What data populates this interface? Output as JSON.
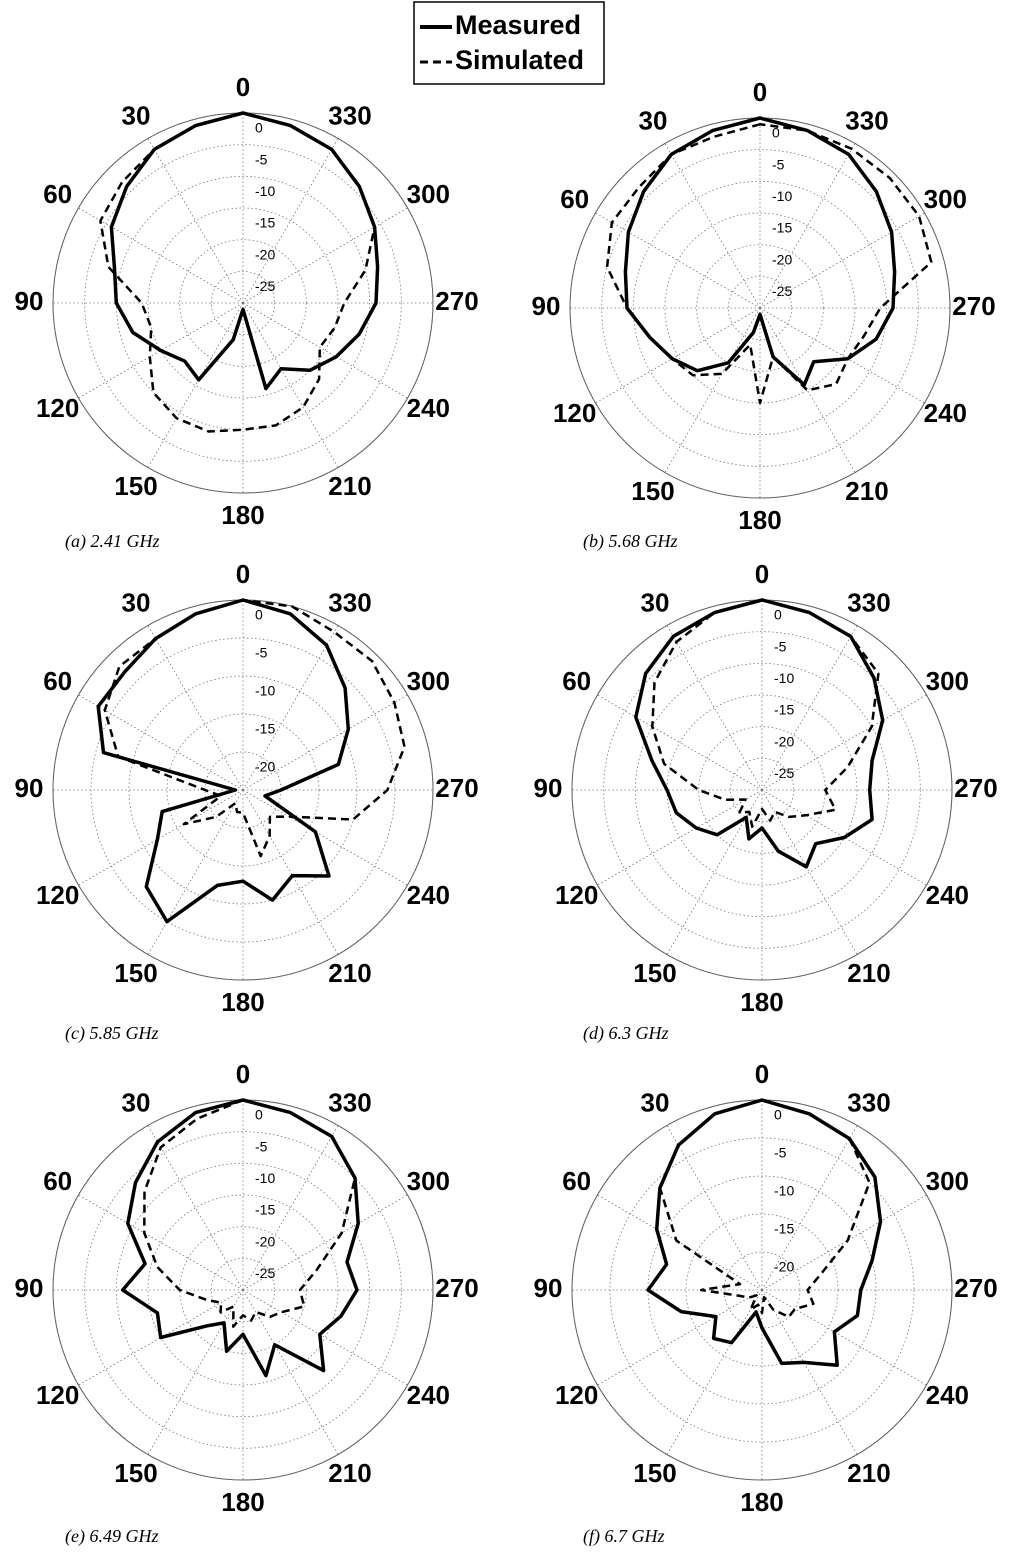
{
  "chart_data": [
    {
      "type": "polar",
      "title": "(a) 2.41 GHz",
      "theta": [
        0,
        15,
        30,
        45,
        60,
        75,
        90,
        105,
        120,
        135,
        150,
        165,
        180,
        195,
        210,
        225,
        240,
        255,
        270,
        285,
        300,
        315,
        330,
        345
      ],
      "rlim": [
        -30,
        0
      ],
      "rticks": [
        0,
        -5,
        -10,
        -15,
        -20,
        -25
      ],
      "thetaticks": [
        0,
        30,
        60,
        90,
        120,
        150,
        180,
        210,
        240,
        270,
        300,
        330
      ],
      "series": [
        {
          "name": "Measured",
          "color": "#000000",
          "dash": "solid",
          "values": [
            0,
            -1,
            -2,
            -4,
            -6,
            -9,
            -10,
            -12,
            -15,
            -17,
            -16,
            -24,
            -29,
            -16,
            -18,
            -15,
            -13,
            -11,
            -9,
            -8,
            -6,
            -4,
            -2,
            -1
          ]
        },
        {
          "name": "Simulated",
          "color": "#000000",
          "dash": "dashed",
          "values": [
            0,
            -1,
            -2,
            -3,
            -4,
            -8,
            -14,
            -15,
            -13,
            -10,
            -9,
            -9,
            -10,
            -10,
            -11,
            -13,
            -16,
            -15,
            -14,
            -10,
            -6,
            -4,
            -2,
            -1
          ]
        }
      ]
    },
    {
      "type": "polar",
      "title": "(b) 5.68 GHz",
      "theta": [
        0,
        15,
        30,
        45,
        60,
        75,
        90,
        105,
        120,
        135,
        150,
        165,
        180,
        195,
        210,
        225,
        240,
        255,
        270,
        285,
        300,
        315,
        330,
        345
      ],
      "rlim": [
        -30,
        0
      ],
      "rticks": [
        0,
        -5,
        -10,
        -15,
        -20,
        -25
      ],
      "thetaticks": [
        0,
        30,
        60,
        90,
        120,
        150,
        180,
        210,
        240,
        270,
        300,
        330
      ],
      "series": [
        {
          "color": "#000000",
          "dash": "solid",
          "values": [
            0,
            -1,
            -2,
            -4,
            -6,
            -8,
            -9,
            -12,
            -14,
            -16,
            -20,
            -26,
            -29,
            -22,
            -16,
            -18,
            -14,
            -11,
            -9,
            -8,
            -6,
            -4,
            -2,
            -1
          ]
        },
        {
          "color": "#000000",
          "dash": "dashed",
          "values": [
            -1,
            -2,
            -2,
            -3,
            -3,
            -5,
            -9,
            -12,
            -14,
            -15,
            -18,
            -24,
            -15,
            -22,
            -15,
            -13,
            -14,
            -13,
            -11,
            -2,
            -1,
            -1,
            -1,
            -1
          ]
        }
      ]
    },
    {
      "type": "polar",
      "title": "(c) 5.85 GHz",
      "theta": [
        0,
        15,
        30,
        45,
        60,
        75,
        90,
        105,
        120,
        135,
        150,
        165,
        180,
        195,
        210,
        225,
        240,
        255,
        270,
        285,
        300,
        315,
        330,
        345
      ],
      "rlim": [
        -25,
        0
      ],
      "rticks": [
        0,
        -5,
        -10,
        -15,
        -20
      ],
      "thetaticks": [
        0,
        30,
        60,
        90,
        120,
        150,
        180,
        210,
        240,
        270,
        300,
        330
      ],
      "series": [
        {
          "color": "#000000",
          "dash": "solid",
          "values": [
            0,
            -1,
            -2,
            -3,
            -3,
            -6,
            -24,
            -14,
            -12,
            -7,
            -5,
            -12,
            -13,
            -10,
            -12,
            -9,
            -14,
            -22,
            -20,
            -12,
            -9,
            -6,
            -3,
            -1
          ]
        },
        {
          "color": "#000000",
          "dash": "dashed",
          "values": [
            0,
            -1,
            -2,
            -2,
            -4,
            -8,
            -20,
            -22,
            -16,
            -20,
            -23,
            -22,
            -22,
            -16,
            -18,
            -20,
            -18,
            -10,
            -6,
            -3,
            -2,
            -1,
            -1,
            0
          ]
        }
      ]
    },
    {
      "type": "polar",
      "title": "(d) 6.3 GHz",
      "theta": [
        0,
        15,
        30,
        45,
        60,
        75,
        90,
        105,
        120,
        135,
        150,
        165,
        180,
        195,
        210,
        225,
        240,
        255,
        270,
        285,
        300,
        315,
        330,
        345
      ],
      "rlim": [
        -30,
        0
      ],
      "rticks": [
        0,
        -5,
        -10,
        -15,
        -20,
        -25
      ],
      "thetaticks": [
        0,
        30,
        60,
        90,
        120,
        150,
        180,
        210,
        240,
        270,
        300,
        330
      ],
      "series": [
        {
          "color": "#000000",
          "dash": "solid",
          "values": [
            0,
            -1,
            -2,
            -4,
            -7,
            -12,
            -15,
            -16,
            -18,
            -20,
            -25,
            -22,
            -24,
            -20,
            -16,
            -18,
            -15,
            -12,
            -13,
            -12,
            -8,
            -5,
            -2,
            -1
          ]
        },
        {
          "color": "#000000",
          "dash": "dashed",
          "values": [
            0,
            -1,
            -3,
            -6,
            -10,
            -14,
            -20,
            -24,
            -27,
            -25,
            -26,
            -24,
            -27,
            -25,
            -26,
            -24,
            -22,
            -18,
            -20,
            -16,
            -10,
            -4,
            -2,
            -1
          ]
        }
      ]
    },
    {
      "type": "polar",
      "title": "(e) 6.49 GHz",
      "theta": [
        0,
        15,
        30,
        45,
        60,
        75,
        90,
        105,
        120,
        135,
        150,
        165,
        180,
        195,
        210,
        225,
        240,
        255,
        270,
        285,
        300,
        315,
        330,
        345
      ],
      "rlim": [
        -30,
        0
      ],
      "rticks": [
        0,
        -5,
        -10,
        -15,
        -20,
        -25
      ],
      "thetaticks": [
        0,
        30,
        60,
        90,
        120,
        150,
        180,
        210,
        240,
        270,
        300,
        330
      ],
      "series": [
        {
          "color": "#000000",
          "dash": "solid",
          "values": [
            0,
            -1,
            -3,
            -6,
            -9,
            -14,
            -11,
            -16,
            -15,
            -22,
            -24,
            -20,
            -23,
            -16,
            -20,
            -12,
            -16,
            -14,
            -12,
            -13,
            -9,
            -5,
            -2,
            -1
          ]
        },
        {
          "color": "#000000",
          "dash": "dashed",
          "values": [
            0,
            -2,
            -4,
            -8,
            -12,
            -16,
            -20,
            -24,
            -26,
            -25,
            -27,
            -24,
            -26,
            -25,
            -26,
            -24,
            -23,
            -20,
            -21,
            -18,
            -12,
            -5,
            -2,
            -1
          ]
        }
      ]
    },
    {
      "type": "polar",
      "title": "(f) 6.7 GHz",
      "theta": [
        0,
        15,
        30,
        45,
        60,
        75,
        90,
        105,
        120,
        135,
        150,
        165,
        180,
        195,
        210,
        225,
        240,
        255,
        270,
        285,
        300,
        315,
        330,
        345
      ],
      "rlim": [
        -25,
        0
      ],
      "rticks": [
        0,
        -5,
        -10,
        -15,
        -20
      ],
      "thetaticks": [
        0,
        30,
        60,
        90,
        120,
        150,
        180,
        210,
        240,
        270,
        300,
        330
      ],
      "series": [
        {
          "color": "#000000",
          "dash": "solid",
          "values": [
            0,
            -1,
            -3,
            -6,
            -9,
            -12,
            -10,
            -14,
            -18,
            -16,
            -17,
            -22,
            -20,
            -15,
            -14,
            -11,
            -14,
            -12,
            -12,
            -10,
            -7,
            -4,
            -2,
            -1
          ]
        },
        {
          "color": "#000000",
          "dash": "dashed",
          "values": [
            0,
            -1,
            -3,
            -6,
            -12,
            -22,
            -17,
            -22,
            -23,
            -24,
            -22,
            -23,
            -22,
            -24,
            -22,
            -20,
            -20,
            -18,
            -19,
            -17,
            -12,
            -5,
            -2,
            -1
          ]
        }
      ]
    }
  ]
}
